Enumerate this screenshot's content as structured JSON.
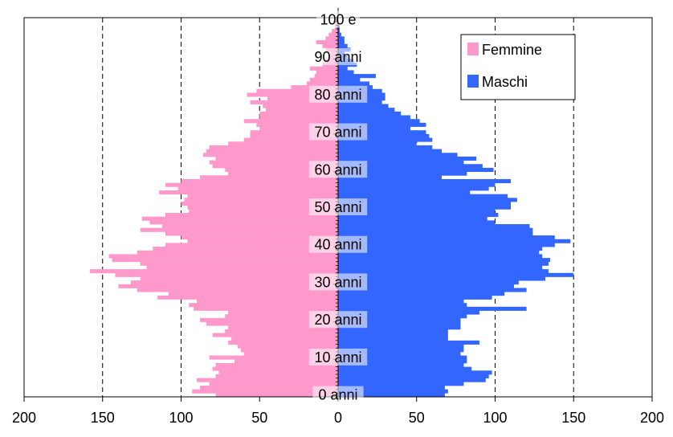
{
  "chart_data": {
    "type": "bar",
    "orientation": "horizontal",
    "subtype": "population-pyramid",
    "title": "",
    "xlabel": "",
    "ylabel": "",
    "xlim": [
      -200,
      200
    ],
    "x_tick_labels": [
      "200",
      "150",
      "100",
      "50",
      "0",
      "50",
      "100",
      "150",
      "200"
    ],
    "y_axis_labels": [
      "0 anni",
      "10 anni",
      "20 anni",
      "30 anni",
      "40 anni",
      "50 anni",
      "60 anni",
      "70 anni",
      "80 anni",
      "90 anni",
      "100 e"
    ],
    "ages": [
      0,
      1,
      2,
      3,
      4,
      5,
      6,
      7,
      8,
      9,
      10,
      11,
      12,
      13,
      14,
      15,
      16,
      17,
      18,
      19,
      20,
      21,
      22,
      23,
      24,
      25,
      26,
      27,
      28,
      29,
      30,
      31,
      32,
      33,
      34,
      35,
      36,
      37,
      38,
      39,
      40,
      41,
      42,
      43,
      44,
      45,
      46,
      47,
      48,
      49,
      50,
      51,
      52,
      53,
      54,
      55,
      56,
      57,
      58,
      59,
      60,
      61,
      62,
      63,
      64,
      65,
      66,
      67,
      68,
      69,
      70,
      71,
      72,
      73,
      74,
      75,
      76,
      77,
      78,
      79,
      80,
      81,
      82,
      83,
      84,
      85,
      86,
      87,
      88,
      89,
      90,
      91,
      92,
      93,
      94,
      95,
      96,
      97,
      98,
      99,
      100
    ],
    "series": [
      {
        "name": "Femmine",
        "color": "#ff99cc",
        "values": [
          78,
          93,
          88,
          82,
          90,
          78,
          76,
          80,
          78,
          66,
          82,
          60,
          62,
          64,
          70,
          68,
          80,
          72,
          70,
          84,
          88,
          72,
          70,
          92,
          95,
          90,
          115,
          108,
          128,
          140,
          132,
          126,
          142,
          158,
          122,
          126,
          144,
          146,
          128,
          118,
          110,
          96,
          100,
          110,
          126,
          112,
          120,
          125,
          110,
          95,
          96,
          100,
          98,
          96,
          114,
          102,
          110,
          100,
          88,
          70,
          72,
          80,
          82,
          78,
          86,
          84,
          82,
          70,
          60,
          56,
          56,
          50,
          52,
          60,
          50,
          50,
          46,
          48,
          56,
          45,
          58,
          52,
          30,
          20,
          18,
          15,
          14,
          18,
          10,
          8,
          6,
          5,
          8,
          10,
          14,
          8,
          6,
          4,
          2,
          2,
          1
        ]
      },
      {
        "name": "Maschi",
        "color": "#3366ff",
        "values": [
          68,
          70,
          68,
          80,
          94,
          96,
          98,
          85,
          80,
          82,
          82,
          78,
          80,
          80,
          90,
          70,
          70,
          70,
          78,
          78,
          78,
          82,
          90,
          120,
          82,
          80,
          98,
          106,
          120,
          112,
          115,
          132,
          150,
          134,
          130,
          134,
          135,
          130,
          128,
          130,
          138,
          148,
          138,
          124,
          124,
          122,
          100,
          95,
          102,
          100,
          110,
          110,
          114,
          108,
          84,
          96,
          100,
          110,
          66,
          82,
          99,
          92,
          80,
          88,
          76,
          66,
          60,
          50,
          60,
          58,
          56,
          46,
          56,
          52,
          46,
          40,
          36,
          32,
          28,
          30,
          30,
          28,
          22,
          20,
          14,
          24,
          10,
          6,
          12,
          10,
          6,
          4,
          8,
          6,
          4,
          4,
          2,
          1,
          1,
          0,
          0
        ]
      }
    ],
    "grid": "vertical dashed",
    "legend_position": "top-right"
  }
}
